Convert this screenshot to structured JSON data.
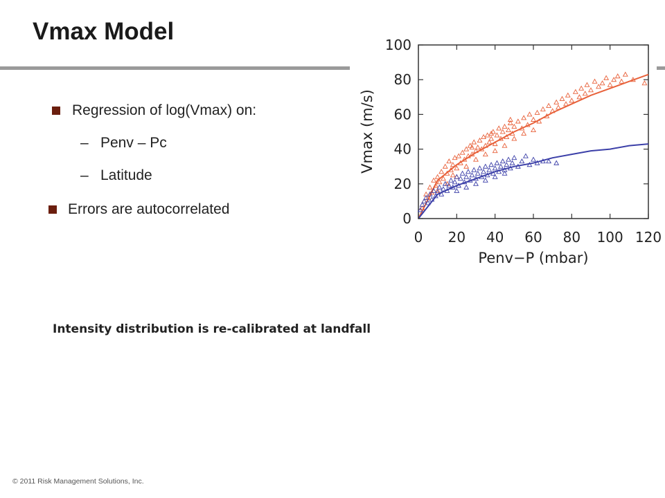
{
  "slide": {
    "title": "Vmax Model",
    "bullets": [
      "Regression of log(Vmax) on:",
      "Errors are autocorrelated"
    ],
    "sub_bullets": [
      "Penv – Pc",
      "Latitude"
    ],
    "sub_bullet_marker": "–",
    "caption": "Intensity distribution is re-calibrated at landfall",
    "copyright": "© 2011 Risk Management Solutions, Inc."
  },
  "chart_data": {
    "type": "scatter",
    "xlabel": "Penv−P  (mbar)",
    "ylabel": "Vmax  (m/s)",
    "xlim": [
      0,
      120
    ],
    "ylim": [
      0,
      100
    ],
    "xticks": [
      "0",
      "20",
      "40",
      "60",
      "80",
      "100",
      "120"
    ],
    "yticks": [
      "0",
      "20",
      "40",
      "60",
      "80",
      "100"
    ],
    "marker": "triangle",
    "grid": false,
    "series": [
      {
        "color": "#e8613a",
        "points": [
          [
            2,
            6
          ],
          [
            3,
            10
          ],
          [
            4,
            14
          ],
          [
            5,
            12
          ],
          [
            6,
            18
          ],
          [
            7,
            15
          ],
          [
            8,
            22
          ],
          [
            9,
            19
          ],
          [
            10,
            24
          ],
          [
            11,
            21
          ],
          [
            12,
            27
          ],
          [
            13,
            23
          ],
          [
            14,
            30
          ],
          [
            15,
            26
          ],
          [
            16,
            33
          ],
          [
            17,
            28
          ],
          [
            18,
            31
          ],
          [
            19,
            35
          ],
          [
            20,
            29
          ],
          [
            21,
            36
          ],
          [
            22,
            32
          ],
          [
            23,
            38
          ],
          [
            24,
            34
          ],
          [
            25,
            40
          ],
          [
            26,
            36
          ],
          [
            27,
            42
          ],
          [
            28,
            37
          ],
          [
            29,
            44
          ],
          [
            30,
            39
          ],
          [
            31,
            41
          ],
          [
            32,
            45
          ],
          [
            33,
            40
          ],
          [
            34,
            47
          ],
          [
            35,
            42
          ],
          [
            36,
            48
          ],
          [
            37,
            44
          ],
          [
            38,
            46
          ],
          [
            39,
            50
          ],
          [
            40,
            43
          ],
          [
            41,
            48
          ],
          [
            42,
            52
          ],
          [
            43,
            46
          ],
          [
            44,
            50
          ],
          [
            45,
            53
          ],
          [
            46,
            47
          ],
          [
            47,
            51
          ],
          [
            48,
            55
          ],
          [
            49,
            49
          ],
          [
            50,
            53
          ],
          [
            52,
            56
          ],
          [
            54,
            52
          ],
          [
            55,
            58
          ],
          [
            57,
            54
          ],
          [
            58,
            60
          ],
          [
            60,
            57
          ],
          [
            62,
            61
          ],
          [
            63,
            56
          ],
          [
            65,
            63
          ],
          [
            67,
            59
          ],
          [
            68,
            65
          ],
          [
            70,
            62
          ],
          [
            72,
            67
          ],
          [
            73,
            64
          ],
          [
            75,
            69
          ],
          [
            77,
            66
          ],
          [
            78,
            71
          ],
          [
            80,
            68
          ],
          [
            82,
            73
          ],
          [
            84,
            70
          ],
          [
            85,
            75
          ],
          [
            87,
            72
          ],
          [
            88,
            77
          ],
          [
            90,
            74
          ],
          [
            92,
            79
          ],
          [
            94,
            76
          ],
          [
            96,
            78
          ],
          [
            98,
            81
          ],
          [
            100,
            77
          ],
          [
            102,
            80
          ],
          [
            104,
            82
          ],
          [
            106,
            79
          ],
          [
            108,
            83
          ],
          [
            112,
            80
          ],
          [
            118,
            78
          ],
          [
            15,
            20
          ],
          [
            20,
            24
          ],
          [
            25,
            30
          ],
          [
            30,
            34
          ],
          [
            35,
            37
          ],
          [
            40,
            39
          ],
          [
            45,
            42
          ],
          [
            50,
            46
          ],
          [
            55,
            49
          ],
          [
            60,
            51
          ],
          [
            10,
            16
          ],
          [
            18,
            25
          ],
          [
            28,
            41
          ],
          [
            38,
            49
          ],
          [
            48,
            57
          ]
        ],
        "curve": [
          [
            0,
            0
          ],
          [
            10,
            22
          ],
          [
            20,
            31
          ],
          [
            30,
            38
          ],
          [
            40,
            44
          ],
          [
            50,
            50
          ],
          [
            60,
            55
          ],
          [
            70,
            61
          ],
          [
            80,
            66
          ],
          [
            90,
            71
          ],
          [
            100,
            75
          ],
          [
            110,
            79
          ],
          [
            120,
            83
          ]
        ]
      },
      {
        "color": "#3b3fa8",
        "points": [
          [
            1,
            5
          ],
          [
            2,
            8
          ],
          [
            3,
            10
          ],
          [
            4,
            12
          ],
          [
            5,
            9
          ],
          [
            6,
            14
          ],
          [
            7,
            11
          ],
          [
            8,
            16
          ],
          [
            9,
            13
          ],
          [
            10,
            15
          ],
          [
            11,
            18
          ],
          [
            12,
            14
          ],
          [
            13,
            17
          ],
          [
            14,
            20
          ],
          [
            15,
            16
          ],
          [
            16,
            19
          ],
          [
            17,
            22
          ],
          [
            18,
            18
          ],
          [
            19,
            21
          ],
          [
            20,
            24
          ],
          [
            21,
            19
          ],
          [
            22,
            23
          ],
          [
            23,
            26
          ],
          [
            24,
            21
          ],
          [
            25,
            24
          ],
          [
            26,
            27
          ],
          [
            27,
            22
          ],
          [
            28,
            25
          ],
          [
            29,
            28
          ],
          [
            30,
            23
          ],
          [
            31,
            26
          ],
          [
            32,
            29
          ],
          [
            33,
            24
          ],
          [
            34,
            27
          ],
          [
            35,
            30
          ],
          [
            36,
            25
          ],
          [
            37,
            28
          ],
          [
            38,
            31
          ],
          [
            39,
            26
          ],
          [
            40,
            29
          ],
          [
            41,
            32
          ],
          [
            42,
            27
          ],
          [
            43,
            30
          ],
          [
            44,
            33
          ],
          [
            45,
            28
          ],
          [
            46,
            31
          ],
          [
            47,
            34
          ],
          [
            48,
            29
          ],
          [
            49,
            32
          ],
          [
            50,
            35
          ],
          [
            52,
            30
          ],
          [
            54,
            33
          ],
          [
            56,
            36
          ],
          [
            58,
            31
          ],
          [
            60,
            34
          ],
          [
            62,
            32
          ],
          [
            65,
            33
          ],
          [
            68,
            33
          ],
          [
            72,
            32
          ],
          [
            25,
            18
          ],
          [
            35,
            22
          ],
          [
            45,
            26
          ],
          [
            30,
            20
          ],
          [
            40,
            24
          ],
          [
            20,
            16
          ]
        ],
        "curve": [
          [
            0,
            0
          ],
          [
            10,
            14
          ],
          [
            20,
            19
          ],
          [
            30,
            23
          ],
          [
            40,
            27
          ],
          [
            50,
            30
          ],
          [
            60,
            32
          ],
          [
            70,
            35
          ],
          [
            80,
            37
          ],
          [
            90,
            39
          ],
          [
            100,
            40
          ],
          [
            110,
            42
          ],
          [
            120,
            43
          ]
        ]
      }
    ]
  }
}
